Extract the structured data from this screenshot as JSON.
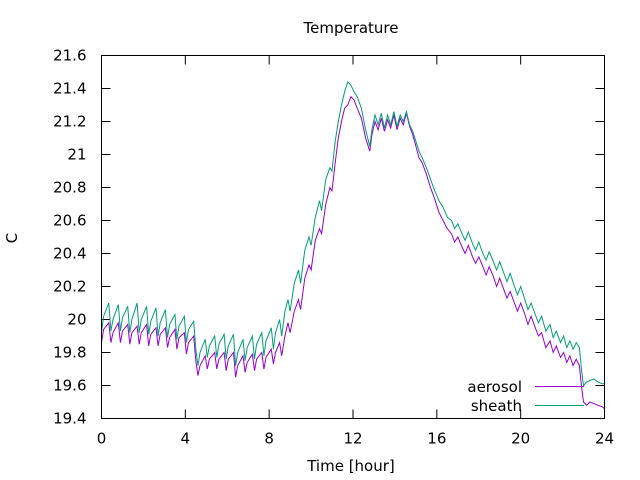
{
  "chart_data": {
    "type": "line",
    "title": "Temperature",
    "xlabel": "Time [hour]",
    "ylabel": "C",
    "xlim": [
      0,
      24
    ],
    "ylim": [
      19.4,
      21.6
    ],
    "xticks": [
      0,
      4,
      8,
      12,
      16,
      20,
      24
    ],
    "yticks": [
      19.4,
      19.6,
      19.8,
      20,
      20.2,
      20.4,
      20.6,
      20.8,
      21,
      21.2,
      21.4,
      21.6
    ],
    "xtick_labels": [
      "0",
      "4",
      "8",
      "12",
      "16",
      "20",
      "24"
    ],
    "ytick_labels": [
      "19.4",
      "19.6",
      "19.8",
      "20",
      "20.2",
      "20.4",
      "20.6",
      "20.8",
      "21",
      "21.2",
      "21.4",
      "21.6"
    ],
    "grid": false,
    "legend_position": "bottom-right",
    "series": [
      {
        "name": "aerosol",
        "color": "#9400d3",
        "points": [
          [
            0.0,
            19.86
          ],
          [
            0.1,
            19.94
          ],
          [
            0.35,
            19.98
          ],
          [
            0.45,
            19.86
          ],
          [
            0.55,
            19.92
          ],
          [
            0.8,
            19.98
          ],
          [
            0.9,
            19.86
          ],
          [
            1.0,
            19.93
          ],
          [
            1.25,
            19.97
          ],
          [
            1.35,
            19.85
          ],
          [
            1.45,
            19.92
          ],
          [
            1.7,
            19.96
          ],
          [
            1.8,
            19.85
          ],
          [
            1.9,
            19.92
          ],
          [
            2.15,
            19.97
          ],
          [
            2.25,
            19.84
          ],
          [
            2.35,
            19.91
          ],
          [
            2.6,
            19.95
          ],
          [
            2.7,
            19.84
          ],
          [
            2.8,
            19.91
          ],
          [
            3.05,
            19.95
          ],
          [
            3.15,
            19.83
          ],
          [
            3.25,
            19.89
          ],
          [
            3.5,
            19.94
          ],
          [
            3.6,
            19.82
          ],
          [
            3.7,
            19.89
          ],
          [
            3.95,
            19.92
          ],
          [
            4.05,
            19.79
          ],
          [
            4.15,
            19.86
          ],
          [
            4.4,
            19.9
          ],
          [
            4.5,
            19.75
          ],
          [
            4.6,
            19.66
          ],
          [
            4.7,
            19.72
          ],
          [
            4.95,
            19.78
          ],
          [
            5.05,
            19.7
          ],
          [
            5.15,
            19.76
          ],
          [
            5.4,
            19.8
          ],
          [
            5.5,
            19.7
          ],
          [
            5.6,
            19.76
          ],
          [
            5.85,
            19.8
          ],
          [
            5.95,
            19.69
          ],
          [
            6.05,
            19.76
          ],
          [
            6.3,
            19.8
          ],
          [
            6.4,
            19.65
          ],
          [
            6.5,
            19.72
          ],
          [
            6.75,
            19.78
          ],
          [
            6.85,
            19.68
          ],
          [
            6.95,
            19.74
          ],
          [
            7.2,
            19.79
          ],
          [
            7.3,
            19.69
          ],
          [
            7.4,
            19.76
          ],
          [
            7.65,
            19.8
          ],
          [
            7.75,
            19.7
          ],
          [
            7.85,
            19.77
          ],
          [
            8.1,
            19.82
          ],
          [
            8.2,
            19.73
          ],
          [
            8.3,
            19.8
          ],
          [
            8.5,
            19.86
          ],
          [
            8.6,
            19.78
          ],
          [
            8.75,
            19.9
          ],
          [
            8.9,
            19.98
          ],
          [
            9.0,
            19.92
          ],
          [
            9.2,
            20.05
          ],
          [
            9.4,
            20.12
          ],
          [
            9.5,
            20.06
          ],
          [
            9.7,
            20.25
          ],
          [
            9.9,
            20.33
          ],
          [
            10.0,
            20.3
          ],
          [
            10.2,
            20.48
          ],
          [
            10.4,
            20.55
          ],
          [
            10.5,
            20.52
          ],
          [
            10.7,
            20.7
          ],
          [
            10.9,
            20.8
          ],
          [
            11.0,
            20.78
          ],
          [
            11.15,
            20.95
          ],
          [
            11.3,
            21.1
          ],
          [
            11.45,
            21.2
          ],
          [
            11.6,
            21.28
          ],
          [
            11.75,
            21.3
          ],
          [
            11.9,
            21.35
          ],
          [
            12.05,
            21.33
          ],
          [
            12.2,
            21.28
          ],
          [
            12.4,
            21.22
          ],
          [
            12.6,
            21.1
          ],
          [
            12.8,
            21.02
          ],
          [
            12.9,
            21.12
          ],
          [
            13.05,
            21.2
          ],
          [
            13.2,
            21.15
          ],
          [
            13.35,
            21.22
          ],
          [
            13.5,
            21.14
          ],
          [
            13.65,
            21.21
          ],
          [
            13.8,
            21.16
          ],
          [
            13.95,
            21.24
          ],
          [
            14.1,
            21.15
          ],
          [
            14.25,
            21.22
          ],
          [
            14.4,
            21.18
          ],
          [
            14.55,
            21.25
          ],
          [
            14.7,
            21.17
          ],
          [
            14.85,
            21.12
          ],
          [
            15.0,
            21.05
          ],
          [
            15.15,
            20.98
          ],
          [
            15.3,
            20.95
          ],
          [
            15.5,
            20.88
          ],
          [
            15.7,
            20.8
          ],
          [
            15.9,
            20.73
          ],
          [
            16.1,
            20.65
          ],
          [
            16.3,
            20.6
          ],
          [
            16.5,
            20.55
          ],
          [
            16.7,
            20.52
          ],
          [
            16.85,
            20.47
          ],
          [
            17.0,
            20.5
          ],
          [
            17.2,
            20.44
          ],
          [
            17.35,
            20.4
          ],
          [
            17.5,
            20.45
          ],
          [
            17.7,
            20.38
          ],
          [
            17.85,
            20.34
          ],
          [
            18.0,
            20.38
          ],
          [
            18.2,
            20.32
          ],
          [
            18.35,
            20.27
          ],
          [
            18.5,
            20.32
          ],
          [
            18.7,
            20.26
          ],
          [
            18.85,
            20.2
          ],
          [
            19.0,
            20.25
          ],
          [
            19.2,
            20.18
          ],
          [
            19.35,
            20.13
          ],
          [
            19.5,
            20.17
          ],
          [
            19.7,
            20.1
          ],
          [
            19.85,
            20.05
          ],
          [
            20.0,
            20.1
          ],
          [
            20.2,
            20.03
          ],
          [
            20.35,
            19.97
          ],
          [
            20.5,
            20.02
          ],
          [
            20.7,
            19.95
          ],
          [
            20.85,
            19.9
          ],
          [
            21.0,
            19.92
          ],
          [
            21.2,
            19.83
          ],
          [
            21.4,
            19.87
          ],
          [
            21.55,
            19.8
          ],
          [
            21.7,
            19.84
          ],
          [
            21.9,
            19.77
          ],
          [
            22.05,
            19.8
          ],
          [
            22.2,
            19.74
          ],
          [
            22.35,
            19.78
          ],
          [
            22.5,
            19.72
          ],
          [
            22.65,
            19.76
          ],
          [
            22.8,
            19.72
          ],
          [
            22.9,
            19.6
          ],
          [
            23.0,
            19.5
          ],
          [
            23.15,
            19.48
          ],
          [
            23.3,
            19.5
          ],
          [
            23.5,
            19.49
          ],
          [
            23.7,
            19.48
          ],
          [
            23.9,
            19.47
          ],
          [
            24.0,
            19.46
          ]
        ]
      },
      {
        "name": "sheath",
        "color": "#009e73",
        "points": [
          [
            0.0,
            19.92
          ],
          [
            0.1,
            20.02
          ],
          [
            0.35,
            20.1
          ],
          [
            0.45,
            19.93
          ],
          [
            0.55,
            20.0
          ],
          [
            0.8,
            20.09
          ],
          [
            0.9,
            19.93
          ],
          [
            1.0,
            20.01
          ],
          [
            1.25,
            20.08
          ],
          [
            1.35,
            19.92
          ],
          [
            1.45,
            20.0
          ],
          [
            1.7,
            20.1
          ],
          [
            1.8,
            19.92
          ],
          [
            1.9,
            20.0
          ],
          [
            2.15,
            20.08
          ],
          [
            2.25,
            19.91
          ],
          [
            2.35,
            19.99
          ],
          [
            2.6,
            20.07
          ],
          [
            2.7,
            19.9
          ],
          [
            2.8,
            19.98
          ],
          [
            3.05,
            20.06
          ],
          [
            3.15,
            19.89
          ],
          [
            3.25,
            19.97
          ],
          [
            3.5,
            20.03
          ],
          [
            3.6,
            19.88
          ],
          [
            3.7,
            19.96
          ],
          [
            3.95,
            20.02
          ],
          [
            4.05,
            19.86
          ],
          [
            4.15,
            19.94
          ],
          [
            4.4,
            19.99
          ],
          [
            4.5,
            19.82
          ],
          [
            4.6,
            19.72
          ],
          [
            4.7,
            19.8
          ],
          [
            4.95,
            19.88
          ],
          [
            5.05,
            19.77
          ],
          [
            5.15,
            19.84
          ],
          [
            5.4,
            19.9
          ],
          [
            5.5,
            19.77
          ],
          [
            5.6,
            19.85
          ],
          [
            5.85,
            19.91
          ],
          [
            5.95,
            19.76
          ],
          [
            6.05,
            19.84
          ],
          [
            6.3,
            19.91
          ],
          [
            6.4,
            19.72
          ],
          [
            6.5,
            19.8
          ],
          [
            6.75,
            19.88
          ],
          [
            6.85,
            19.75
          ],
          [
            6.95,
            19.83
          ],
          [
            7.2,
            19.9
          ],
          [
            7.3,
            19.76
          ],
          [
            7.4,
            19.85
          ],
          [
            7.65,
            19.92
          ],
          [
            7.75,
            19.78
          ],
          [
            7.85,
            19.87
          ],
          [
            8.1,
            19.95
          ],
          [
            8.2,
            19.82
          ],
          [
            8.3,
            19.92
          ],
          [
            8.5,
            20.0
          ],
          [
            8.6,
            19.9
          ],
          [
            8.75,
            20.05
          ],
          [
            8.9,
            20.12
          ],
          [
            9.0,
            20.05
          ],
          [
            9.2,
            20.22
          ],
          [
            9.4,
            20.3
          ],
          [
            9.5,
            20.22
          ],
          [
            9.7,
            20.42
          ],
          [
            9.9,
            20.5
          ],
          [
            10.0,
            20.45
          ],
          [
            10.2,
            20.62
          ],
          [
            10.4,
            20.72
          ],
          [
            10.5,
            20.66
          ],
          [
            10.7,
            20.85
          ],
          [
            10.9,
            20.92
          ],
          [
            11.0,
            20.9
          ],
          [
            11.15,
            21.08
          ],
          [
            11.3,
            21.2
          ],
          [
            11.45,
            21.3
          ],
          [
            11.6,
            21.38
          ],
          [
            11.75,
            21.44
          ],
          [
            11.9,
            21.42
          ],
          [
            12.05,
            21.38
          ],
          [
            12.2,
            21.35
          ],
          [
            12.4,
            21.28
          ],
          [
            12.6,
            21.15
          ],
          [
            12.8,
            21.05
          ],
          [
            12.9,
            21.15
          ],
          [
            13.05,
            21.24
          ],
          [
            13.2,
            21.18
          ],
          [
            13.35,
            21.25
          ],
          [
            13.5,
            21.16
          ],
          [
            13.65,
            21.24
          ],
          [
            13.8,
            21.18
          ],
          [
            13.95,
            21.26
          ],
          [
            14.1,
            21.17
          ],
          [
            14.25,
            21.24
          ],
          [
            14.4,
            21.2
          ],
          [
            14.55,
            21.26
          ],
          [
            14.7,
            21.18
          ],
          [
            14.85,
            21.14
          ],
          [
            15.0,
            21.08
          ],
          [
            15.15,
            21.02
          ],
          [
            15.3,
            20.98
          ],
          [
            15.5,
            20.92
          ],
          [
            15.7,
            20.85
          ],
          [
            15.9,
            20.78
          ],
          [
            16.1,
            20.72
          ],
          [
            16.3,
            20.68
          ],
          [
            16.5,
            20.62
          ],
          [
            16.7,
            20.6
          ],
          [
            16.85,
            20.55
          ],
          [
            17.0,
            20.58
          ],
          [
            17.2,
            20.52
          ],
          [
            17.35,
            20.48
          ],
          [
            17.5,
            20.53
          ],
          [
            17.7,
            20.46
          ],
          [
            17.85,
            20.42
          ],
          [
            18.0,
            20.47
          ],
          [
            18.2,
            20.4
          ],
          [
            18.35,
            20.36
          ],
          [
            18.5,
            20.41
          ],
          [
            18.7,
            20.35
          ],
          [
            18.85,
            20.3
          ],
          [
            19.0,
            20.35
          ],
          [
            19.2,
            20.28
          ],
          [
            19.35,
            20.23
          ],
          [
            19.5,
            20.28
          ],
          [
            19.7,
            20.2
          ],
          [
            19.85,
            20.15
          ],
          [
            20.0,
            20.2
          ],
          [
            20.2,
            20.12
          ],
          [
            20.35,
            20.06
          ],
          [
            20.5,
            20.1
          ],
          [
            20.7,
            20.03
          ],
          [
            20.85,
            19.98
          ],
          [
            21.0,
            20.02
          ],
          [
            21.2,
            19.93
          ],
          [
            21.4,
            19.97
          ],
          [
            21.55,
            19.89
          ],
          [
            21.7,
            19.93
          ],
          [
            21.9,
            19.86
          ],
          [
            22.05,
            19.9
          ],
          [
            22.2,
            19.83
          ],
          [
            22.35,
            19.87
          ],
          [
            22.5,
            19.82
          ],
          [
            22.65,
            19.86
          ],
          [
            22.8,
            19.83
          ],
          [
            22.9,
            19.7
          ],
          [
            23.0,
            19.6
          ],
          [
            23.15,
            19.62
          ],
          [
            23.3,
            19.63
          ],
          [
            23.5,
            19.64
          ],
          [
            23.7,
            19.62
          ],
          [
            23.9,
            19.61
          ],
          [
            24.0,
            19.61
          ]
        ]
      }
    ]
  }
}
